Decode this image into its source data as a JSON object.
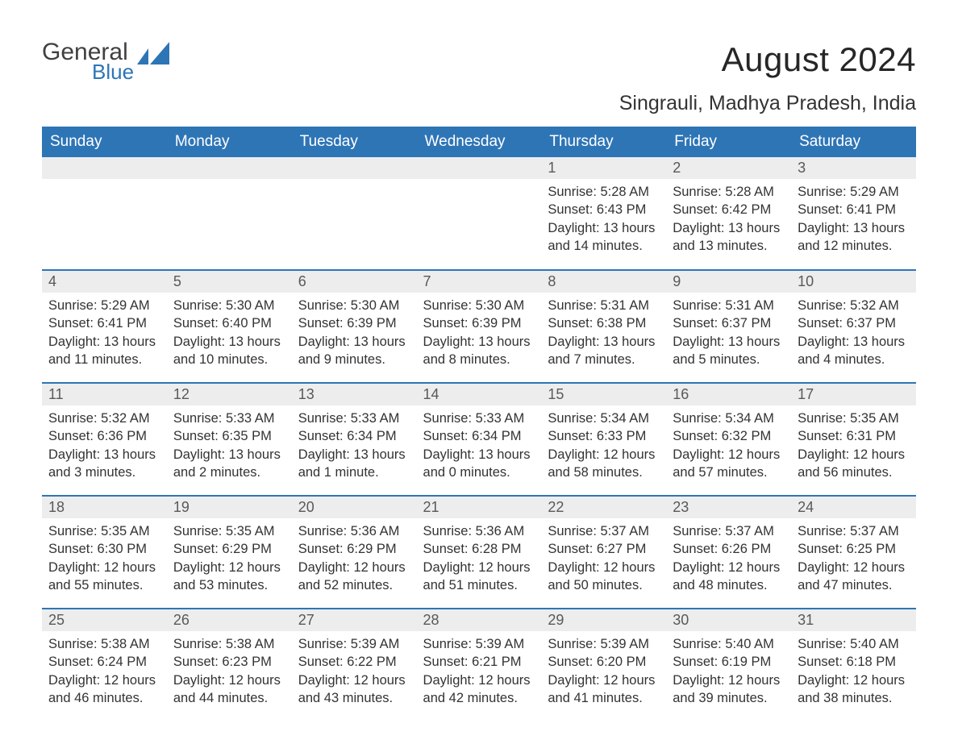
{
  "logo": {
    "general": "General",
    "blue": "Blue"
  },
  "header": {
    "month_title": "August 2024",
    "location": "Singrauli, Madhya Pradesh, India"
  },
  "colors": {
    "header_bg": "#2e75b6",
    "header_text": "#ffffff",
    "daynum_bg": "#ededed",
    "daynum_text": "#595959",
    "body_text": "#333333",
    "row_divider": "#2e75b6",
    "logo_gray": "#404040",
    "logo_blue": "#2e75b6"
  },
  "day_headers": [
    "Sunday",
    "Monday",
    "Tuesday",
    "Wednesday",
    "Thursday",
    "Friday",
    "Saturday"
  ],
  "labels": {
    "sunrise": "Sunrise: ",
    "sunset": "Sunset: ",
    "daylight": "Daylight: "
  },
  "weeks": [
    [
      null,
      null,
      null,
      null,
      {
        "n": "1",
        "sunrise": "5:28 AM",
        "sunset": "6:43 PM",
        "daylight": "13 hours and 14 minutes."
      },
      {
        "n": "2",
        "sunrise": "5:28 AM",
        "sunset": "6:42 PM",
        "daylight": "13 hours and 13 minutes."
      },
      {
        "n": "3",
        "sunrise": "5:29 AM",
        "sunset": "6:41 PM",
        "daylight": "13 hours and 12 minutes."
      }
    ],
    [
      {
        "n": "4",
        "sunrise": "5:29 AM",
        "sunset": "6:41 PM",
        "daylight": "13 hours and 11 minutes."
      },
      {
        "n": "5",
        "sunrise": "5:30 AM",
        "sunset": "6:40 PM",
        "daylight": "13 hours and 10 minutes."
      },
      {
        "n": "6",
        "sunrise": "5:30 AM",
        "sunset": "6:39 PM",
        "daylight": "13 hours and 9 minutes."
      },
      {
        "n": "7",
        "sunrise": "5:30 AM",
        "sunset": "6:39 PM",
        "daylight": "13 hours and 8 minutes."
      },
      {
        "n": "8",
        "sunrise": "5:31 AM",
        "sunset": "6:38 PM",
        "daylight": "13 hours and 7 minutes."
      },
      {
        "n": "9",
        "sunrise": "5:31 AM",
        "sunset": "6:37 PM",
        "daylight": "13 hours and 5 minutes."
      },
      {
        "n": "10",
        "sunrise": "5:32 AM",
        "sunset": "6:37 PM",
        "daylight": "13 hours and 4 minutes."
      }
    ],
    [
      {
        "n": "11",
        "sunrise": "5:32 AM",
        "sunset": "6:36 PM",
        "daylight": "13 hours and 3 minutes."
      },
      {
        "n": "12",
        "sunrise": "5:33 AM",
        "sunset": "6:35 PM",
        "daylight": "13 hours and 2 minutes."
      },
      {
        "n": "13",
        "sunrise": "5:33 AM",
        "sunset": "6:34 PM",
        "daylight": "13 hours and 1 minute."
      },
      {
        "n": "14",
        "sunrise": "5:33 AM",
        "sunset": "6:34 PM",
        "daylight": "13 hours and 0 minutes."
      },
      {
        "n": "15",
        "sunrise": "5:34 AM",
        "sunset": "6:33 PM",
        "daylight": "12 hours and 58 minutes."
      },
      {
        "n": "16",
        "sunrise": "5:34 AM",
        "sunset": "6:32 PM",
        "daylight": "12 hours and 57 minutes."
      },
      {
        "n": "17",
        "sunrise": "5:35 AM",
        "sunset": "6:31 PM",
        "daylight": "12 hours and 56 minutes."
      }
    ],
    [
      {
        "n": "18",
        "sunrise": "5:35 AM",
        "sunset": "6:30 PM",
        "daylight": "12 hours and 55 minutes."
      },
      {
        "n": "19",
        "sunrise": "5:35 AM",
        "sunset": "6:29 PM",
        "daylight": "12 hours and 53 minutes."
      },
      {
        "n": "20",
        "sunrise": "5:36 AM",
        "sunset": "6:29 PM",
        "daylight": "12 hours and 52 minutes."
      },
      {
        "n": "21",
        "sunrise": "5:36 AM",
        "sunset": "6:28 PM",
        "daylight": "12 hours and 51 minutes."
      },
      {
        "n": "22",
        "sunrise": "5:37 AM",
        "sunset": "6:27 PM",
        "daylight": "12 hours and 50 minutes."
      },
      {
        "n": "23",
        "sunrise": "5:37 AM",
        "sunset": "6:26 PM",
        "daylight": "12 hours and 48 minutes."
      },
      {
        "n": "24",
        "sunrise": "5:37 AM",
        "sunset": "6:25 PM",
        "daylight": "12 hours and 47 minutes."
      }
    ],
    [
      {
        "n": "25",
        "sunrise": "5:38 AM",
        "sunset": "6:24 PM",
        "daylight": "12 hours and 46 minutes."
      },
      {
        "n": "26",
        "sunrise": "5:38 AM",
        "sunset": "6:23 PM",
        "daylight": "12 hours and 44 minutes."
      },
      {
        "n": "27",
        "sunrise": "5:39 AM",
        "sunset": "6:22 PM",
        "daylight": "12 hours and 43 minutes."
      },
      {
        "n": "28",
        "sunrise": "5:39 AM",
        "sunset": "6:21 PM",
        "daylight": "12 hours and 42 minutes."
      },
      {
        "n": "29",
        "sunrise": "5:39 AM",
        "sunset": "6:20 PM",
        "daylight": "12 hours and 41 minutes."
      },
      {
        "n": "30",
        "sunrise": "5:40 AM",
        "sunset": "6:19 PM",
        "daylight": "12 hours and 39 minutes."
      },
      {
        "n": "31",
        "sunrise": "5:40 AM",
        "sunset": "6:18 PM",
        "daylight": "12 hours and 38 minutes."
      }
    ]
  ]
}
